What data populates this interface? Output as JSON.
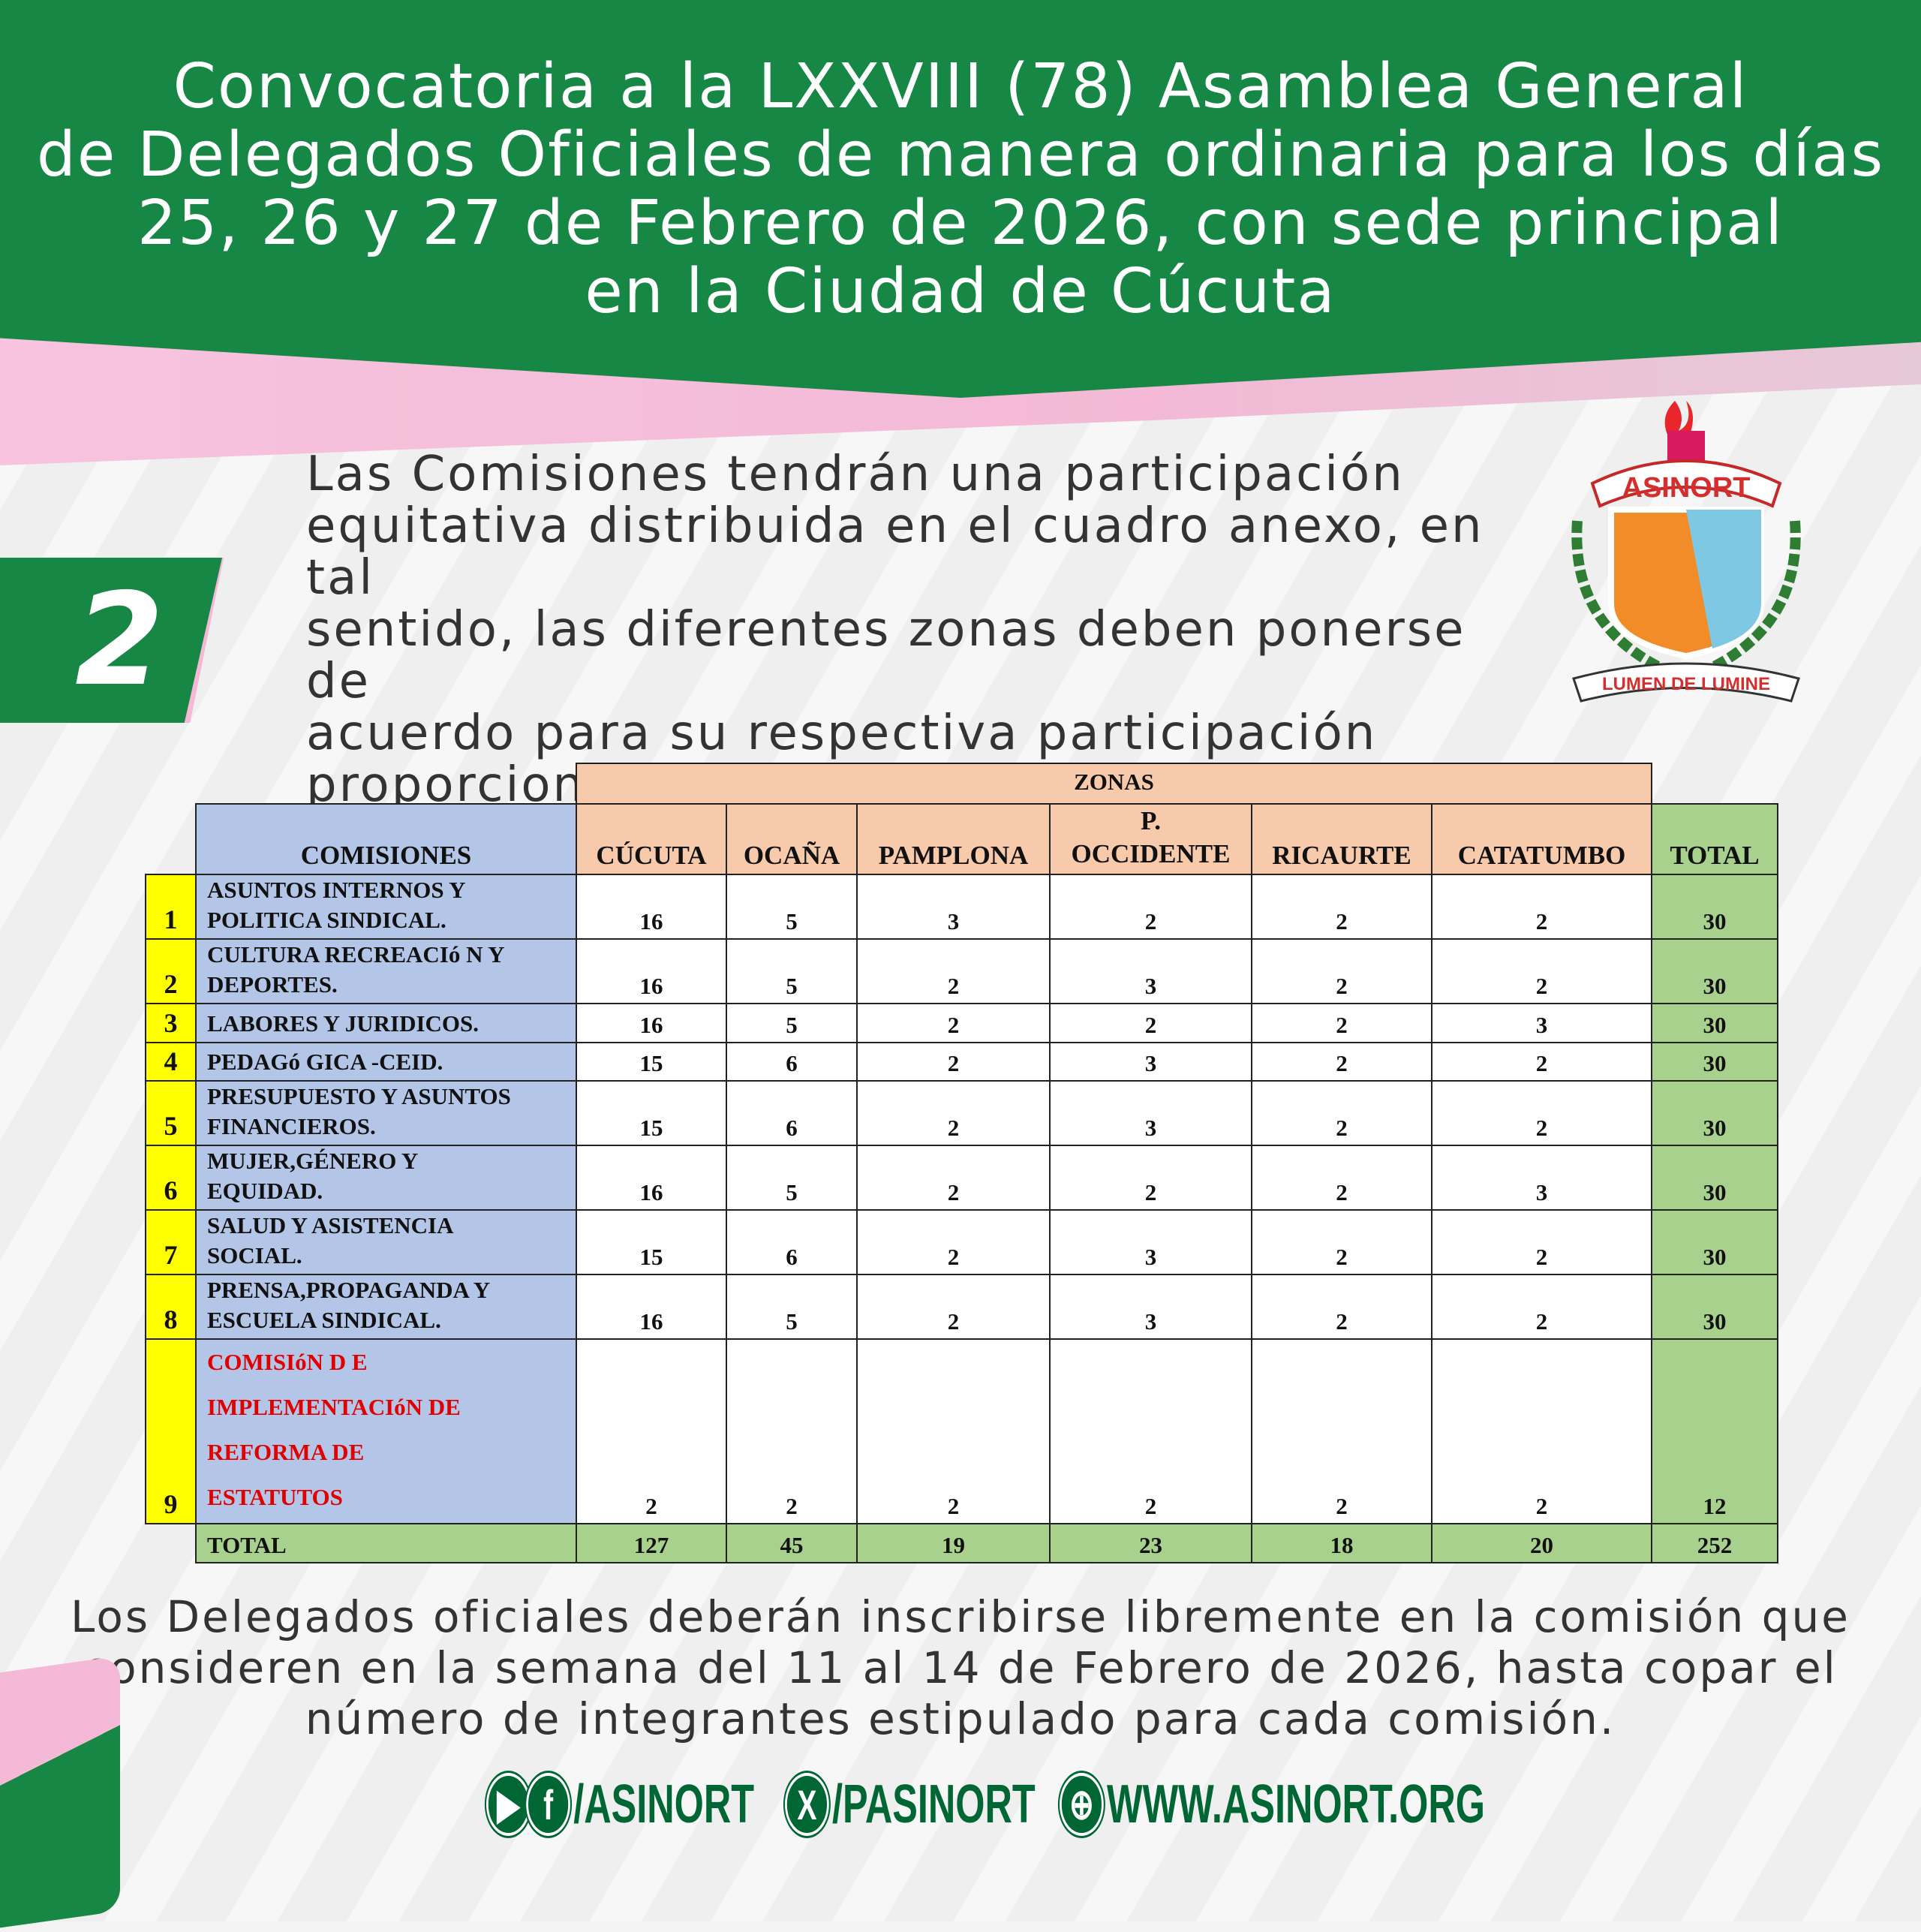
{
  "header": {
    "title_lines": [
      "Convocatoria a la LXXVIII (78) Asamblea General",
      "de Delegados Oficiales de manera ordinaria para los días",
      "25, 26 y 27 de Febrero de 2026, con sede principal",
      "en la Ciudad de Cúcuta"
    ]
  },
  "section": {
    "number": "2",
    "text_lines": [
      "Las Comisiones tendrán una participación",
      "equitativa distribuida en el cuadro anexo, en tal",
      "sentido, las diferentes zonas deben ponerse de",
      "acuerdo para su respectiva participación",
      "proporcional."
    ]
  },
  "logo": {
    "name": "ASINORT",
    "motto": "LUMEN DE LUMINE"
  },
  "table": {
    "group_header": "ZONAS",
    "col_comisiones": "COMISIONES",
    "zones": [
      "CÚCUTA",
      "OCAÑA",
      "PAMPLONA",
      "P. OCCIDENTE",
      "RICAURTE",
      "CATATUMBO"
    ],
    "zone_p_line1": "P.",
    "zone_p_line2": "OCCIDENTE",
    "col_total": "TOTAL",
    "rows": [
      {
        "n": "1",
        "l1": "ASUNTOS INTERNOS Y",
        "l2": "POLITICA SINDICAL.",
        "v": [
          "16",
          "5",
          "3",
          "2",
          "2",
          "2"
        ],
        "t": "30"
      },
      {
        "n": "2",
        "l1": "CULTURA RECREACIó N Y",
        "l2": "DEPORTES.",
        "v": [
          "16",
          "5",
          "2",
          "3",
          "2",
          "2"
        ],
        "t": "30"
      },
      {
        "n": "3",
        "l1": "LABORES Y JURIDICOS.",
        "l2": "",
        "v": [
          "16",
          "5",
          "2",
          "2",
          "2",
          "3"
        ],
        "t": "30"
      },
      {
        "n": "4",
        "l1": "PEDAGó GICA -CEID.",
        "l2": "",
        "v": [
          "15",
          "6",
          "2",
          "3",
          "2",
          "2"
        ],
        "t": "30"
      },
      {
        "n": "5",
        "l1": "PRESUPUESTO Y ASUNTOS",
        "l2": "FINANCIEROS.",
        "v": [
          "15",
          "6",
          "2",
          "3",
          "2",
          "2"
        ],
        "t": "30"
      },
      {
        "n": "6",
        "l1": "MUJER,GÉNERO Y",
        "l2": "EQUIDAD.",
        "v": [
          "16",
          "5",
          "2",
          "2",
          "2",
          "3"
        ],
        "t": "30"
      },
      {
        "n": "7",
        "l1": "SALUD Y ASISTENCIA",
        "l2": "SOCIAL.",
        "v": [
          "15",
          "6",
          "2",
          "3",
          "2",
          "2"
        ],
        "t": "30"
      },
      {
        "n": "8",
        "l1": "PRENSA,PROPAGANDA Y",
        "l2": "ESCUELA SINDICAL.",
        "v": [
          "16",
          "5",
          "2",
          "3",
          "2",
          "2"
        ],
        "t": "30"
      }
    ],
    "row9": {
      "n": "9",
      "lines": [
        "COMISIóN D E",
        "IMPLEMENTACIóN  DE",
        "REFORMA DE",
        "ESTATUTOS"
      ],
      "v": [
        "2",
        "2",
        "2",
        "2",
        "2",
        "2"
      ],
      "t": "12",
      "color": "#e00000"
    },
    "total_row": {
      "label": "TOTAL",
      "v": [
        "127",
        "45",
        "19",
        "23",
        "18",
        "20"
      ],
      "t": "252"
    }
  },
  "footer": {
    "lines": [
      "Los Delegados oficiales deberán inscribirse libremente en la comisión que",
      "consideren en la semana del 11 al 14 de Febrero de 2026, hasta copar el",
      "número de integrantes estipulado para cada comisión."
    ]
  },
  "social": {
    "youtube_facebook": "/ASINORT",
    "x": "/PASINORT",
    "web": "WWW.ASINORT.ORG",
    "icons": [
      "youtube-icon",
      "facebook-icon",
      "x-icon",
      "globe-icon"
    ]
  },
  "colors": {
    "green": "#168744",
    "pink": "#f6b8d4",
    "zone_header": "#f7caac",
    "commission": "#b4c6e7",
    "total": "#a9d18e",
    "number": "#ffff00"
  }
}
